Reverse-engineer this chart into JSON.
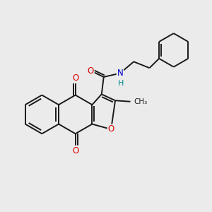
{
  "bg": "#ebebeb",
  "bc": "#1a1a1a",
  "bw": 1.4,
  "oc": "#dd0000",
  "nc": "#0000cc",
  "hc": "#008888",
  "fs": 8.5,
  "xlim": [
    0.0,
    10.0
  ],
  "ylim": [
    1.5,
    9.0
  ]
}
